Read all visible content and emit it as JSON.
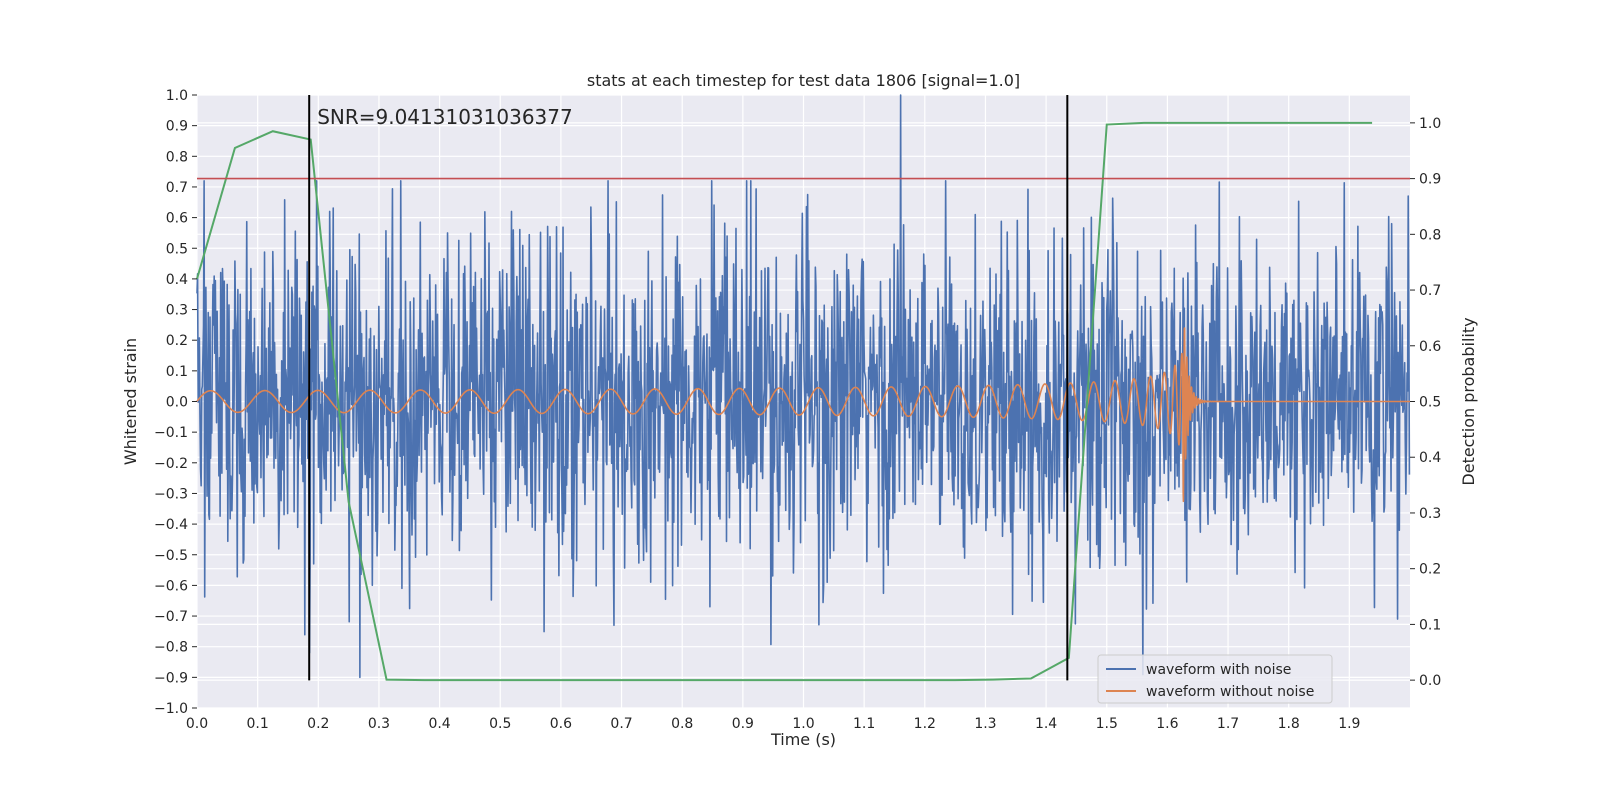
{
  "chart_data": {
    "type": "line",
    "title": "stats at each timestep for test data 1806 [signal=1.0]",
    "xlabel": "Time (s)",
    "ylabel": "Whitened strain",
    "y2label": "Detection probability",
    "xlim": [
      0.0,
      2.0
    ],
    "ylim": [
      -1.0,
      1.0
    ],
    "y2lim": [
      -0.05,
      1.05
    ],
    "x_ticks": [
      0.0,
      0.1,
      0.2,
      0.3,
      0.4,
      0.5,
      0.6,
      0.7,
      0.8,
      0.9,
      1.0,
      1.1,
      1.2,
      1.3,
      1.4,
      1.5,
      1.6,
      1.7,
      1.8,
      1.9
    ],
    "x_tick_labels": [
      "0.0",
      "0.1",
      "0.2",
      "0.3",
      "0.4",
      "0.5",
      "0.6",
      "0.7",
      "0.8",
      "0.9",
      "1.0",
      "1.1",
      "1.2",
      "1.3",
      "1.4",
      "1.5",
      "1.6",
      "1.7",
      "1.8",
      "1.9"
    ],
    "y_ticks": [
      1.0,
      0.9,
      0.8,
      0.7,
      0.6,
      0.5,
      0.4,
      0.3,
      0.2,
      0.1,
      0.0,
      -0.1,
      -0.2,
      -0.3,
      -0.4,
      -0.5,
      -0.6,
      -0.7,
      -0.8,
      -0.9,
      -1.0
    ],
    "y_tick_labels": [
      "1.0",
      "0.9",
      "0.8",
      "0.7",
      "0.6",
      "0.5",
      "0.4",
      "0.3",
      "0.2",
      "0.1",
      "0.0",
      "−0.1",
      "−0.2",
      "−0.3",
      "−0.4",
      "−0.5",
      "−0.6",
      "−0.7",
      "−0.8",
      "−0.9",
      "−1.0"
    ],
    "y2_ticks": [
      1.0,
      0.9,
      0.8,
      0.7,
      0.6,
      0.5,
      0.4,
      0.3,
      0.2,
      0.1,
      0.0
    ],
    "y2_tick_labels": [
      "1.0",
      "0.9",
      "0.8",
      "0.7",
      "0.6",
      "0.5",
      "0.4",
      "0.3",
      "0.2",
      "0.1",
      "0.0"
    ],
    "annotation": "SNR=9.04131031036377",
    "threshold": 0.9,
    "markers_x": [
      0.185,
      1.435
    ],
    "markers_y_range": [
      -0.91,
      1.0
    ],
    "series": [
      {
        "name": "waveform with noise",
        "axis": "left",
        "color": "#4c72b0",
        "description": "dense noisy strain, amplitude roughly -0.9 to 1.0",
        "seed": 1806,
        "n_points": 2048,
        "peak": {
          "x": 1.16,
          "y": 1.0
        }
      },
      {
        "name": "waveform without noise",
        "axis": "left",
        "color": "#dd8452",
        "description": "chirp: ~11 Hz growing to merger at ~1.625 s (peak ~0.4), ringdown to 0 by ~1.66 s"
      },
      {
        "name": "detection probability",
        "axis": "right",
        "color": "#55a868",
        "x": [
          0.0,
          0.0625,
          0.125,
          0.1875,
          0.25,
          0.3125,
          0.375,
          0.4375,
          0.5,
          0.5625,
          0.625,
          0.6875,
          0.75,
          0.8125,
          0.875,
          0.9375,
          1.0,
          1.0625,
          1.125,
          1.1875,
          1.25,
          1.3125,
          1.375,
          1.4375,
          1.5,
          1.5625,
          1.625,
          1.6875,
          1.75,
          1.8125,
          1.875,
          1.9375
        ],
        "values": [
          0.72,
          0.955,
          0.985,
          0.97,
          0.32,
          0.001,
          0.0,
          0.0,
          0.0,
          0.0,
          0.0,
          0.0,
          0.0,
          0.0,
          0.0,
          0.0,
          0.0,
          0.0,
          0.0,
          0.0,
          0.0,
          0.001,
          0.003,
          0.04,
          0.997,
          1.0,
          1.0,
          1.0,
          1.0,
          1.0,
          1.0,
          1.0
        ]
      },
      {
        "name": "threshold",
        "axis": "right",
        "color": "#c44e52",
        "values": [
          0.9,
          0.9
        ]
      }
    ],
    "legend": {
      "location": "lower-right",
      "entries": [
        {
          "label": "waveform with noise",
          "color": "#4c72b0"
        },
        {
          "label": "waveform without noise",
          "color": "#dd8452"
        }
      ]
    }
  }
}
